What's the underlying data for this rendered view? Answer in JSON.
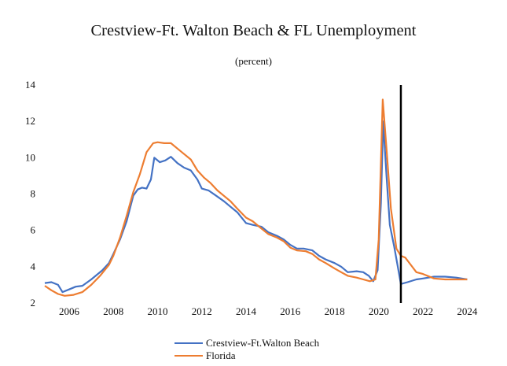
{
  "chart_data": {
    "type": "line",
    "title": "Crestview-Ft. Walton Beach & FL Unemployment",
    "subtitle": "(percent)",
    "xlabel": "",
    "ylabel": "",
    "xlim": [
      2004.9,
      2024.2
    ],
    "ylim": [
      2,
      14
    ],
    "x_ticks": [
      2006,
      2008,
      2010,
      2012,
      2014,
      2016,
      2018,
      2020,
      2022,
      2024
    ],
    "y_ticks": [
      2,
      4,
      6,
      8,
      10,
      12,
      14
    ],
    "grid": false,
    "legend_position": "bottom-center",
    "vertical_line_x": 2021.0,
    "colors": {
      "crestview": "#4472C4",
      "florida": "#ED7D31",
      "vline": "#000000"
    },
    "series": [
      {
        "name": "Crestview-Ft.Walton Beach",
        "points": [
          [
            2004.9,
            3.1
          ],
          [
            2005.2,
            3.15
          ],
          [
            2005.5,
            3.0
          ],
          [
            2005.7,
            2.6
          ],
          [
            2006.0,
            2.75
          ],
          [
            2006.3,
            2.9
          ],
          [
            2006.6,
            2.95
          ],
          [
            2007.0,
            3.3
          ],
          [
            2007.5,
            3.8
          ],
          [
            2007.8,
            4.2
          ],
          [
            2008.0,
            4.7
          ],
          [
            2008.3,
            5.5
          ],
          [
            2008.6,
            6.5
          ],
          [
            2008.9,
            7.9
          ],
          [
            2009.1,
            8.25
          ],
          [
            2009.3,
            8.35
          ],
          [
            2009.5,
            8.3
          ],
          [
            2009.7,
            8.8
          ],
          [
            2009.85,
            10.0
          ],
          [
            2010.1,
            9.75
          ],
          [
            2010.35,
            9.85
          ],
          [
            2010.6,
            10.05
          ],
          [
            2010.9,
            9.7
          ],
          [
            2011.2,
            9.45
          ],
          [
            2011.5,
            9.3
          ],
          [
            2011.8,
            8.8
          ],
          [
            2012.0,
            8.3
          ],
          [
            2012.3,
            8.2
          ],
          [
            2012.6,
            7.95
          ],
          [
            2013.0,
            7.6
          ],
          [
            2013.3,
            7.3
          ],
          [
            2013.6,
            7.0
          ],
          [
            2014.0,
            6.4
          ],
          [
            2014.3,
            6.3
          ],
          [
            2014.7,
            6.2
          ],
          [
            2015.0,
            5.9
          ],
          [
            2015.4,
            5.7
          ],
          [
            2015.7,
            5.5
          ],
          [
            2016.0,
            5.2
          ],
          [
            2016.3,
            5.0
          ],
          [
            2016.6,
            5.0
          ],
          [
            2017.0,
            4.9
          ],
          [
            2017.3,
            4.6
          ],
          [
            2017.6,
            4.4
          ],
          [
            2018.0,
            4.2
          ],
          [
            2018.3,
            4.0
          ],
          [
            2018.6,
            3.7
          ],
          [
            2019.0,
            3.75
          ],
          [
            2019.3,
            3.7
          ],
          [
            2019.55,
            3.5
          ],
          [
            2019.75,
            3.2
          ],
          [
            2019.95,
            3.8
          ],
          [
            2020.1,
            7.5
          ],
          [
            2020.2,
            12.0
          ],
          [
            2020.35,
            9.0
          ],
          [
            2020.5,
            6.3
          ],
          [
            2020.7,
            5.1
          ],
          [
            2021.0,
            3.05
          ],
          [
            2021.3,
            3.15
          ],
          [
            2021.7,
            3.3
          ],
          [
            2022.0,
            3.35
          ],
          [
            2022.5,
            3.45
          ],
          [
            2023.0,
            3.45
          ],
          [
            2023.5,
            3.4
          ],
          [
            2024.0,
            3.3
          ]
        ]
      },
      {
        "name": "Florida",
        "points": [
          [
            2004.9,
            2.95
          ],
          [
            2005.2,
            2.7
          ],
          [
            2005.5,
            2.5
          ],
          [
            2005.8,
            2.4
          ],
          [
            2006.2,
            2.45
          ],
          [
            2006.6,
            2.6
          ],
          [
            2007.0,
            3.0
          ],
          [
            2007.4,
            3.5
          ],
          [
            2007.8,
            4.1
          ],
          [
            2008.0,
            4.6
          ],
          [
            2008.3,
            5.6
          ],
          [
            2008.6,
            6.8
          ],
          [
            2008.9,
            8.1
          ],
          [
            2009.2,
            9.1
          ],
          [
            2009.5,
            10.3
          ],
          [
            2009.8,
            10.8
          ],
          [
            2010.0,
            10.85
          ],
          [
            2010.3,
            10.8
          ],
          [
            2010.6,
            10.8
          ],
          [
            2010.9,
            10.5
          ],
          [
            2011.2,
            10.2
          ],
          [
            2011.5,
            9.9
          ],
          [
            2011.8,
            9.3
          ],
          [
            2012.1,
            8.9
          ],
          [
            2012.4,
            8.6
          ],
          [
            2012.7,
            8.2
          ],
          [
            2013.0,
            7.9
          ],
          [
            2013.3,
            7.6
          ],
          [
            2013.6,
            7.2
          ],
          [
            2014.0,
            6.7
          ],
          [
            2014.3,
            6.5
          ],
          [
            2014.6,
            6.2
          ],
          [
            2015.0,
            5.8
          ],
          [
            2015.4,
            5.6
          ],
          [
            2015.7,
            5.4
          ],
          [
            2016.0,
            5.05
          ],
          [
            2016.3,
            4.9
          ],
          [
            2016.7,
            4.85
          ],
          [
            2017.0,
            4.7
          ],
          [
            2017.3,
            4.4
          ],
          [
            2017.6,
            4.2
          ],
          [
            2018.0,
            3.9
          ],
          [
            2018.3,
            3.7
          ],
          [
            2018.6,
            3.5
          ],
          [
            2019.0,
            3.4
          ],
          [
            2019.3,
            3.3
          ],
          [
            2019.6,
            3.2
          ],
          [
            2019.85,
            3.3
          ],
          [
            2020.0,
            5.5
          ],
          [
            2020.18,
            13.2
          ],
          [
            2020.35,
            10.5
          ],
          [
            2020.55,
            7.2
          ],
          [
            2020.8,
            5.0
          ],
          [
            2021.0,
            4.6
          ],
          [
            2021.2,
            4.5
          ],
          [
            2021.45,
            4.1
          ],
          [
            2021.7,
            3.7
          ],
          [
            2022.0,
            3.6
          ],
          [
            2022.5,
            3.35
          ],
          [
            2023.0,
            3.3
          ],
          [
            2023.5,
            3.3
          ],
          [
            2024.0,
            3.3
          ]
        ]
      }
    ]
  }
}
